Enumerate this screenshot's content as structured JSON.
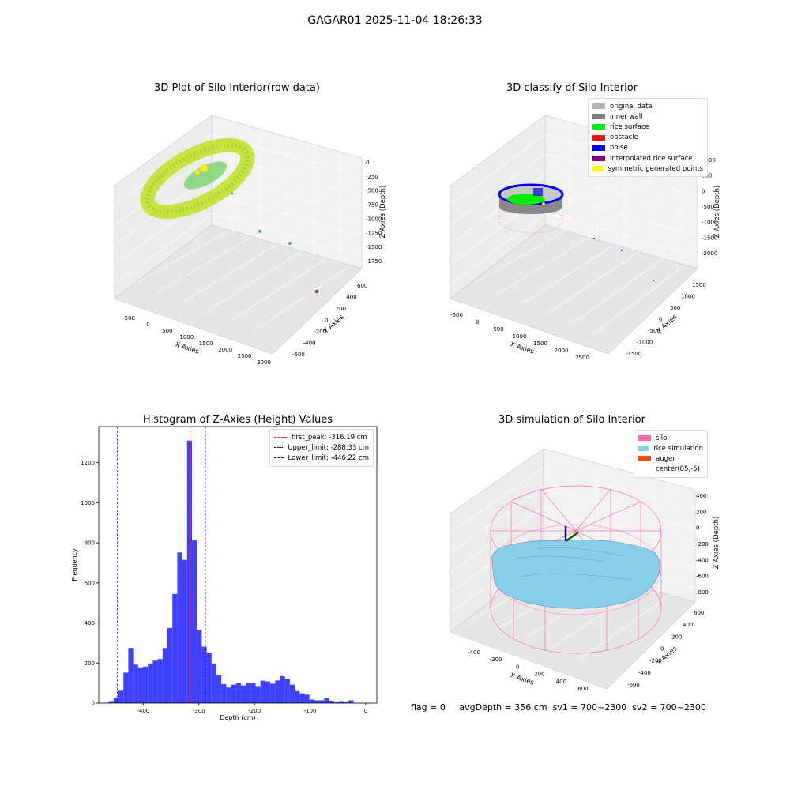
{
  "figure": {
    "suptitle": "GAGAR01 2025-11-04 18:26:33",
    "status": {
      "flag": "flag = 0",
      "avg_depth": "avgDepth = 356 cm",
      "sv1": "sv1 = 700~2300",
      "sv2": "sv2 = 700~2300"
    }
  },
  "chart_data": [
    {
      "id": "raw",
      "type": "scatter",
      "title": "3D Plot of Silo Interior(row data)",
      "xlabel": "X Axies",
      "ylabel": "Y Axies",
      "zlabel": "Z Axies (Depth)",
      "x_ticks": [
        -500,
        0,
        500,
        1000,
        1500,
        2000,
        2500,
        3000
      ],
      "y_ticks": [
        -600,
        -400,
        -200,
        0,
        200,
        400,
        600
      ],
      "z_ticks": [
        0,
        -250,
        -500,
        -750,
        -1000,
        -1250,
        -1500,
        -1750
      ],
      "colors": {
        "main": "#b5dd2a",
        "inner": "#5fc85f",
        "highlight": "#f4ee1d",
        "outlier1": "#4daa8f",
        "outlier2": "#5c9fa3",
        "outlier3": "#7b3f96"
      }
    },
    {
      "id": "classify",
      "type": "scatter",
      "title": "3D classify of Silo Interior",
      "xlabel": "X Axies",
      "ylabel": "Y Axies",
      "zlabel": "Z Axies (Depth)",
      "x_ticks": [
        -500,
        0,
        500,
        1000,
        1500,
        2000,
        2500
      ],
      "y_ticks": [
        -1500,
        -1000,
        -500,
        0,
        500,
        1000,
        1500
      ],
      "z_ticks": [
        1000,
        500,
        0,
        -500,
        -1000,
        -1500,
        -2000
      ],
      "legend": [
        {
          "label": "original data",
          "color": "#b0b0b0"
        },
        {
          "label": "inner wall",
          "color": "#808080"
        },
        {
          "label": "rice surface",
          "color": "#00ee00"
        },
        {
          "label": "obstacle",
          "color": "#ee1111"
        },
        {
          "label": "noise",
          "color": "#0000ee"
        },
        {
          "label": "interpolated rice surface",
          "color": "#800080"
        },
        {
          "label": "symmetric generated points",
          "color": "#ffff00"
        }
      ]
    },
    {
      "id": "hist",
      "type": "bar",
      "title": "Histogram of Z-Axies (Height) Values",
      "xlabel": "Depth (cm)",
      "ylabel": "Frequency",
      "xlim": [
        -480,
        20
      ],
      "ylim": [
        0,
        1380
      ],
      "x_ticks": [
        -400,
        -300,
        -200,
        -100,
        0
      ],
      "y_ticks": [
        0,
        200,
        400,
        600,
        800,
        1000,
        1200
      ],
      "bar_color": "#4040ff",
      "bin_start": -462,
      "bin_width": 8.8,
      "values": [
        10,
        28,
        62,
        152,
        275,
        192,
        178,
        182,
        198,
        212,
        220,
        275,
        375,
        545,
        752,
        715,
        1310,
        812,
        365,
        282,
        252,
        198,
        142,
        95,
        78,
        92,
        100,
        88,
        100,
        100,
        85,
        112,
        108,
        97,
        113,
        135,
        120,
        92,
        60,
        48,
        42,
        18,
        14,
        14,
        24,
        12,
        6,
        10,
        4,
        14
      ],
      "lines": [
        {
          "label": "first_peak: -316.19 cm",
          "value": -316.19,
          "color": "#ee2222"
        },
        {
          "label": "Upper_limit: -288.33 cm",
          "value": -288.33,
          "color": "#0000cc"
        },
        {
          "label": "Lower_limit: -446.22 cm",
          "value": -446.22,
          "color": "#0000cc"
        }
      ]
    },
    {
      "id": "sim",
      "type": "scatter",
      "title": "3D simulation of Silo Interior",
      "xlabel": "X Axies",
      "ylabel": "Y Axies",
      "zlabel": "Z Axies (Depth)",
      "x_ticks": [
        -400,
        -200,
        0,
        200,
        400,
        600
      ],
      "y_ticks": [
        -600,
        -400,
        -200,
        0,
        200,
        400,
        600
      ],
      "z_ticks": [
        400,
        200,
        0,
        -200,
        -400,
        -600,
        -800
      ],
      "legend": [
        {
          "label": "silo",
          "color": "#ff69b4"
        },
        {
          "label": "rice simulation",
          "color": "#87ceeb"
        },
        {
          "label": "auger",
          "color": "#ff4500"
        },
        {
          "label": "center(85,-5)",
          "color": "#ffffff"
        }
      ]
    }
  ]
}
